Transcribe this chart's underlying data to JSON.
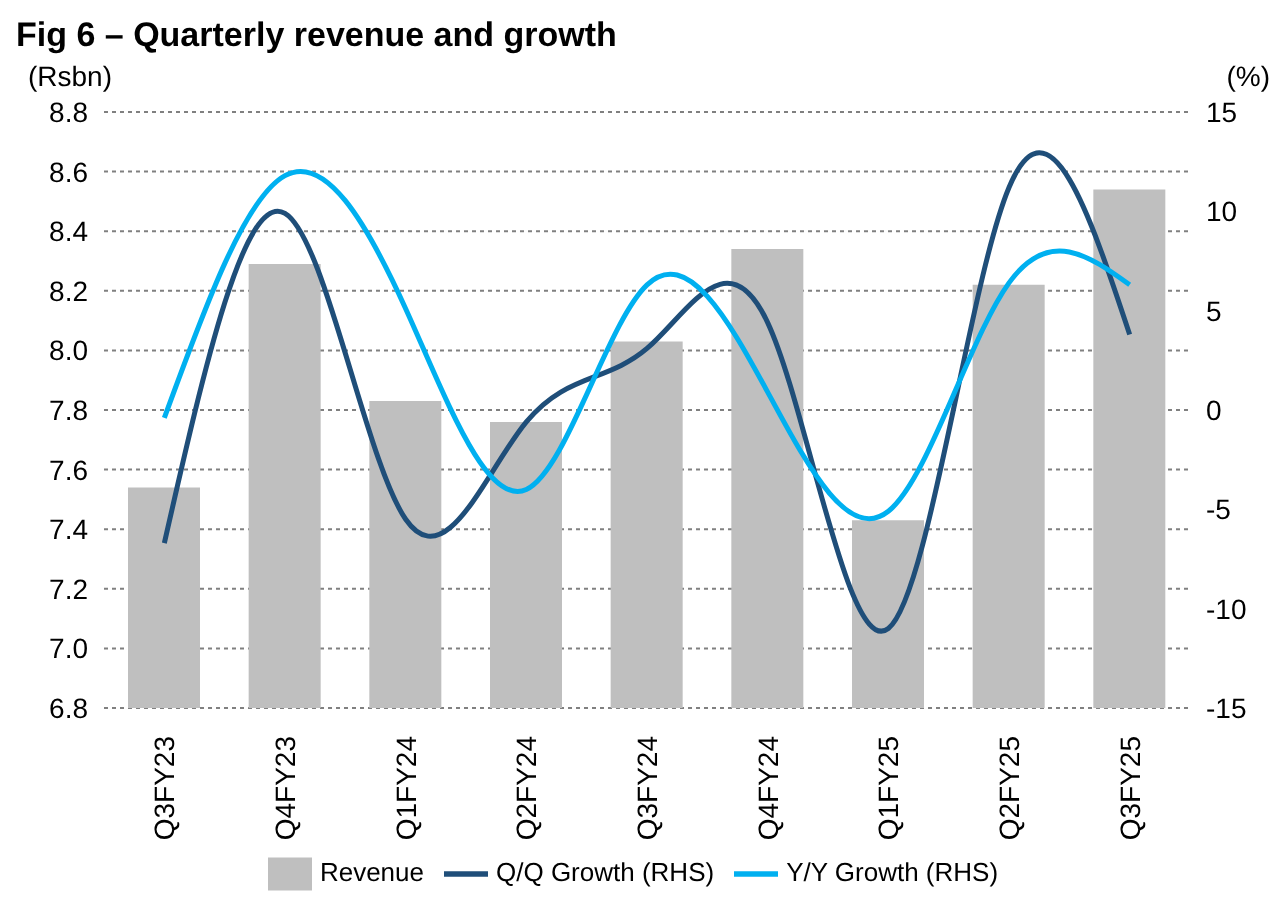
{
  "chart_data": {
    "type": "bar",
    "title": "Fig 6 – Quarterly revenue and growth",
    "ylabel": "(Rsbn)",
    "y2label": "(%)",
    "categories": [
      "Q3FY23",
      "Q4FY23",
      "Q1FY24",
      "Q2FY24",
      "Q3FY24",
      "Q4FY24",
      "Q1FY25",
      "Q2FY25",
      "Q3FY25"
    ],
    "series": [
      {
        "name": "Revenue",
        "color": "#bfbfbf",
        "values": [
          7.54,
          8.29,
          7.83,
          7.76,
          8.03,
          8.34,
          7.43,
          8.22,
          8.54
        ]
      },
      {
        "name": "Q/Q Growth (RHS)",
        "type": "line",
        "axis": "y2",
        "color": "#1f4e79",
        "values": [
          -6.7,
          9.9,
          -5.5,
          -0.6,
          3.1,
          4.4,
          -11.0,
          11.2,
          3.8
        ]
      },
      {
        "name": "Y/Y Growth (RHS)",
        "type": "line",
        "axis": "y2",
        "color": "#00b0f0",
        "values": [
          -0.4,
          11.8,
          5.1,
          -4.0,
          6.3,
          0.9,
          -5.1,
          6.4,
          6.3
        ]
      }
    ],
    "ylim": [
      6.8,
      8.8
    ],
    "yticks": [
      {
        "value": 6.8,
        "label": "6.8"
      },
      {
        "value": 7.0,
        "label": "7.0"
      },
      {
        "value": 7.2,
        "label": "7.2"
      },
      {
        "value": 7.4,
        "label": "7.4"
      },
      {
        "value": 7.6,
        "label": "7.6"
      },
      {
        "value": 7.8,
        "label": "7.8"
      },
      {
        "value": 8.0,
        "label": "8.0"
      },
      {
        "value": 8.2,
        "label": "8.2"
      },
      {
        "value": 8.4,
        "label": "8.4"
      },
      {
        "value": 8.6,
        "label": "8.6"
      },
      {
        "value": 8.8,
        "label": "8.8"
      }
    ],
    "y2lim": [
      -15,
      15
    ],
    "y2ticks": [
      -15,
      -10,
      -5,
      0,
      5,
      10,
      15
    ],
    "grid": "y",
    "legend": "bottom",
    "marker": "none",
    "line_style": "solid"
  }
}
